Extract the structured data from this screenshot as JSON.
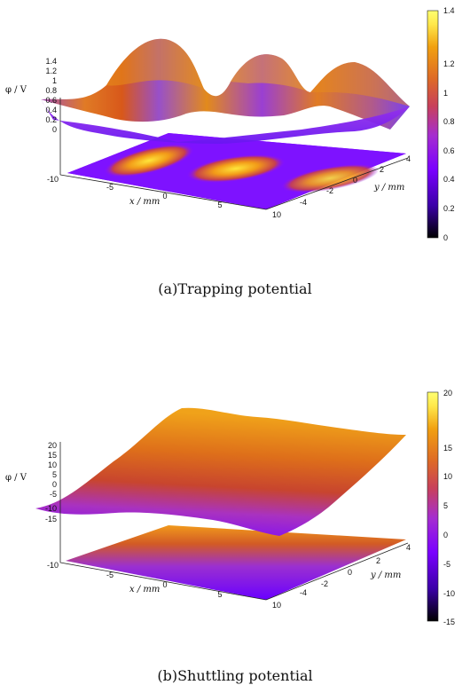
{
  "colors": {
    "gradient": [
      "#000000",
      "#3a00a6",
      "#7a00ff",
      "#a52dd0",
      "#c8405b",
      "#de6a26",
      "#f1a010",
      "#ffe84a",
      "#ffff70"
    ]
  },
  "chart_data": [
    {
      "type": "surface3d",
      "caption": "(a)Trapping potential",
      "zlabel": "φ / V",
      "xlabel": "x / mm",
      "ylabel": "y / mm",
      "xlim": [
        -10,
        10
      ],
      "ylim": [
        -4,
        4
      ],
      "zlim": [
        0,
        1.4
      ],
      "z_ticks": [
        "1.4",
        "1.2",
        "1",
        "0.8",
        "0.6",
        "0.4",
        "0.2",
        "0"
      ],
      "x_ticks": [
        "-10",
        "-5",
        "0",
        "5",
        "10"
      ],
      "y_ticks": [
        "-4",
        "-2",
        "0",
        "2",
        "4"
      ],
      "colorbar": {
        "range": [
          0,
          1.4
        ],
        "ticks": [
          "0",
          "0.2",
          "0.4",
          "0.6",
          "0.8",
          "1",
          "1.2",
          "1.4"
        ]
      },
      "surface": {
        "x": [
          -10,
          -8,
          -6,
          -4,
          -2,
          0,
          2,
          4,
          6,
          8,
          10
        ],
        "z": [
          0.25,
          0.9,
          1.33,
          0.95,
          0.2,
          1.32,
          0.35,
          0.62,
          1.02,
          0.85,
          0.4
        ]
      }
    },
    {
      "type": "surface3d",
      "caption": "(b)Shuttling potential",
      "zlabel": "φ / V",
      "xlabel": "x / mm",
      "ylabel": "y / mm",
      "xlim": [
        -10,
        10
      ],
      "ylim": [
        -4,
        4
      ],
      "zlim": [
        -15,
        20
      ],
      "z_ticks": [
        "20",
        "15",
        "10",
        "5",
        "0",
        "-5",
        "-10",
        "-15"
      ],
      "x_ticks": [
        "-10",
        "-5",
        "0",
        "5",
        "10"
      ],
      "y_ticks": [
        "-4",
        "-2",
        "0",
        "2",
        "4"
      ],
      "colorbar": {
        "range": [
          -15,
          20
        ],
        "ticks": [
          "-15",
          "-10",
          "-5",
          "0",
          "5",
          "10",
          "15",
          "20"
        ]
      },
      "surface": {
        "y": [
          -4,
          -2,
          0,
          2,
          4
        ],
        "z": [
          -10,
          -5,
          3,
          12,
          18
        ]
      }
    }
  ]
}
